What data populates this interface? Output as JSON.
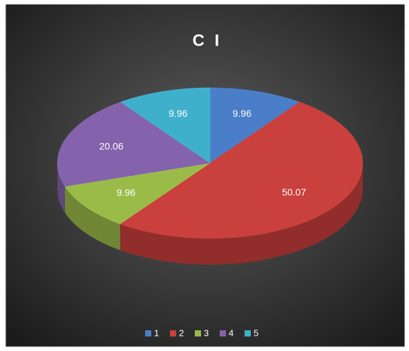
{
  "chart_data": {
    "type": "pie3d",
    "title": "C I",
    "categories": [
      "1",
      "2",
      "3",
      "4",
      "5"
    ],
    "values": [
      9.96,
      50.07,
      9.96,
      20.06,
      9.96
    ],
    "colors": [
      "#4a7ec8",
      "#c9403d",
      "#9bbb49",
      "#8462ac",
      "#3fb0cc"
    ],
    "legend": "bottom"
  }
}
